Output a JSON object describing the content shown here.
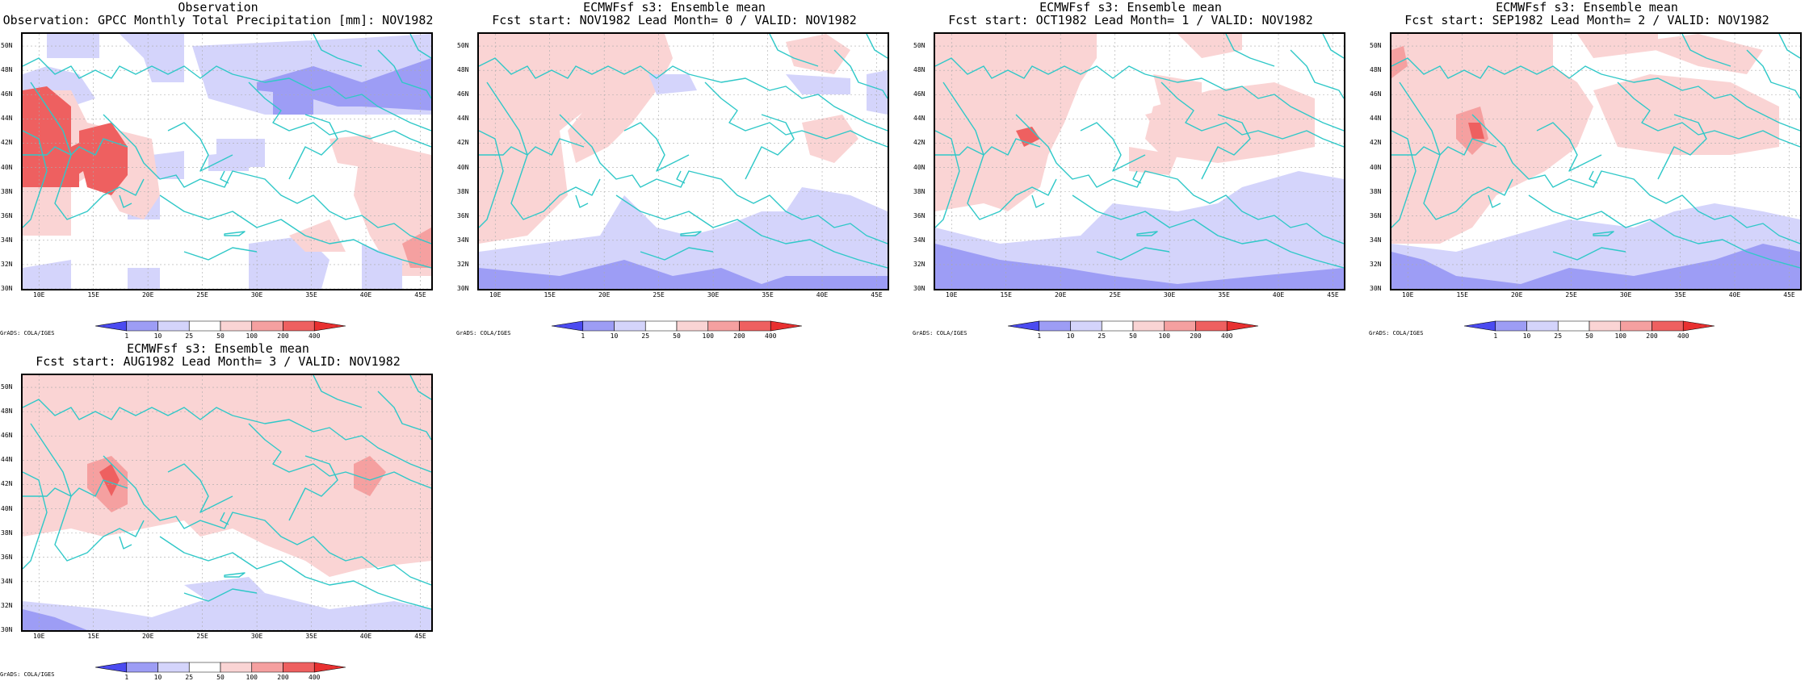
{
  "axes": {
    "lat_labels": [
      "30N",
      "32N",
      "34N",
      "36N",
      "38N",
      "40N",
      "42N",
      "44N",
      "46N",
      "48N",
      "50N"
    ],
    "lon_labels": [
      "10E",
      "15E",
      "20E",
      "25E",
      "30E",
      "35E",
      "40E",
      "45E"
    ],
    "lat_range": [
      30,
      51
    ],
    "lon_range": [
      8.5,
      46
    ]
  },
  "colorbar": {
    "labels": [
      "1",
      "10",
      "25",
      "50",
      "100",
      "200",
      "400"
    ],
    "colors": [
      "#4b4bf0",
      "#9d9df5",
      "#d4d4fb",
      "#ffffff",
      "#fad4d4",
      "#f5a0a0",
      "#ee6060",
      "#e83030"
    ]
  },
  "credit": "GrADS: COLA/IGES",
  "colors": {
    "coast": "#30c8c8",
    "grid": "#aaaaaa"
  },
  "panels": [
    {
      "title1": "Observation",
      "title2": "Observation: GPCC Monthly Total Precipitation [mm]: NOV1982"
    },
    {
      "title1": "ECMWFsf s3: Ensemble mean",
      "title2": "Fcst start: NOV1982  Lead Month= 0 / VALID: NOV1982"
    },
    {
      "title1": "ECMWFsf s3: Ensemble mean",
      "title2": "Fcst start: OCT1982  Lead Month= 1 / VALID: NOV1982"
    },
    {
      "title1": "ECMWFsf s3: Ensemble mean",
      "title2": "Fcst start: SEP1982  Lead Month= 2 / VALID: NOV1982"
    },
    {
      "title1": "ECMWFsf s3: Ensemble mean",
      "title2": "Fcst start: AUG1982  Lead Month= 3 / VALID: NOV1982"
    }
  ]
}
